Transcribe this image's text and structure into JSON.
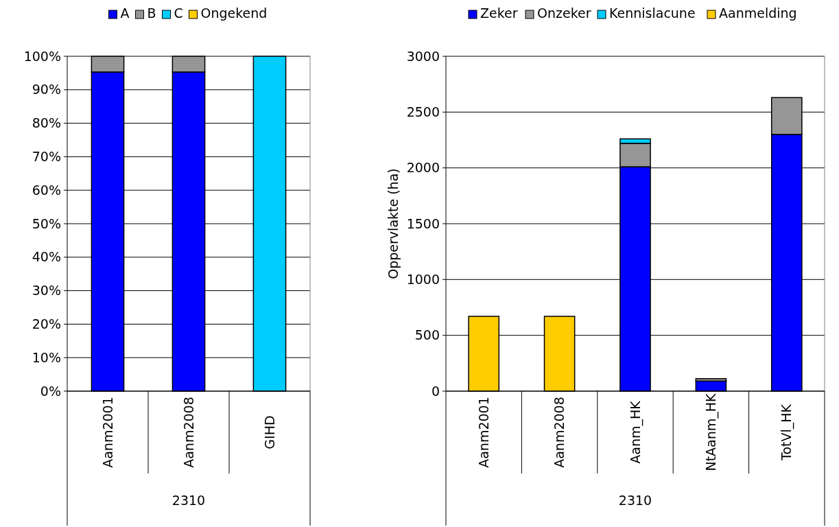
{
  "chart_data": [
    {
      "type": "bar",
      "stacked": true,
      "categories": [
        "Aanm2001",
        "Aanm2008",
        "GIHD"
      ],
      "xlabel": "2310",
      "series": [
        {
          "name": "A",
          "color": "#0000ff",
          "values": [
            95.3,
            95.3,
            0
          ]
        },
        {
          "name": "B",
          "color": "#969696",
          "values": [
            4.7,
            4.7,
            0
          ]
        },
        {
          "name": "C",
          "color": "#00ccff",
          "values": [
            0,
            0,
            100
          ]
        },
        {
          "name": "Ongekend",
          "color": "#ffcc00",
          "values": [
            0,
            0,
            0
          ]
        }
      ],
      "ylim": [
        0,
        100
      ],
      "yticks": [
        {
          "value": 0,
          "label": "0%"
        },
        {
          "value": 10,
          "label": "10%"
        },
        {
          "value": 20,
          "label": "20%"
        },
        {
          "value": 30,
          "label": "30%"
        },
        {
          "value": 40,
          "label": "40%"
        },
        {
          "value": 50,
          "label": "50%"
        },
        {
          "value": 60,
          "label": "60%"
        },
        {
          "value": 70,
          "label": "70%"
        },
        {
          "value": 80,
          "label": "80%"
        },
        {
          "value": 90,
          "label": "90%"
        },
        {
          "value": 100,
          "label": "100%"
        }
      ],
      "grid": "y",
      "legend": "top"
    },
    {
      "type": "bar",
      "stacked": true,
      "categories": [
        "Aanm2001",
        "Aanm2008",
        "Aanm_HK",
        "NtAanm_HK",
        "TotVl_HK"
      ],
      "xlabel": "2310",
      "ylabel": "Oppervlakte (ha)",
      "series": [
        {
          "name": "Zeker",
          "color": "#0000ff",
          "values": [
            0,
            0,
            2010,
            90,
            2300
          ]
        },
        {
          "name": "Onzeker",
          "color": "#969696",
          "values": [
            0,
            0,
            210,
            22,
            330
          ]
        },
        {
          "name": "Kennislacune",
          "color": "#00ccff",
          "values": [
            0,
            0,
            40,
            0,
            0
          ]
        },
        {
          "name": "Aanmelding",
          "color": "#ffcc00",
          "values": [
            670,
            670,
            0,
            0,
            0
          ]
        }
      ],
      "ylim": [
        0,
        3000
      ],
      "yticks": [
        0,
        500,
        1000,
        1500,
        2000,
        2500,
        3000
      ],
      "grid": "y",
      "legend": "top"
    }
  ]
}
